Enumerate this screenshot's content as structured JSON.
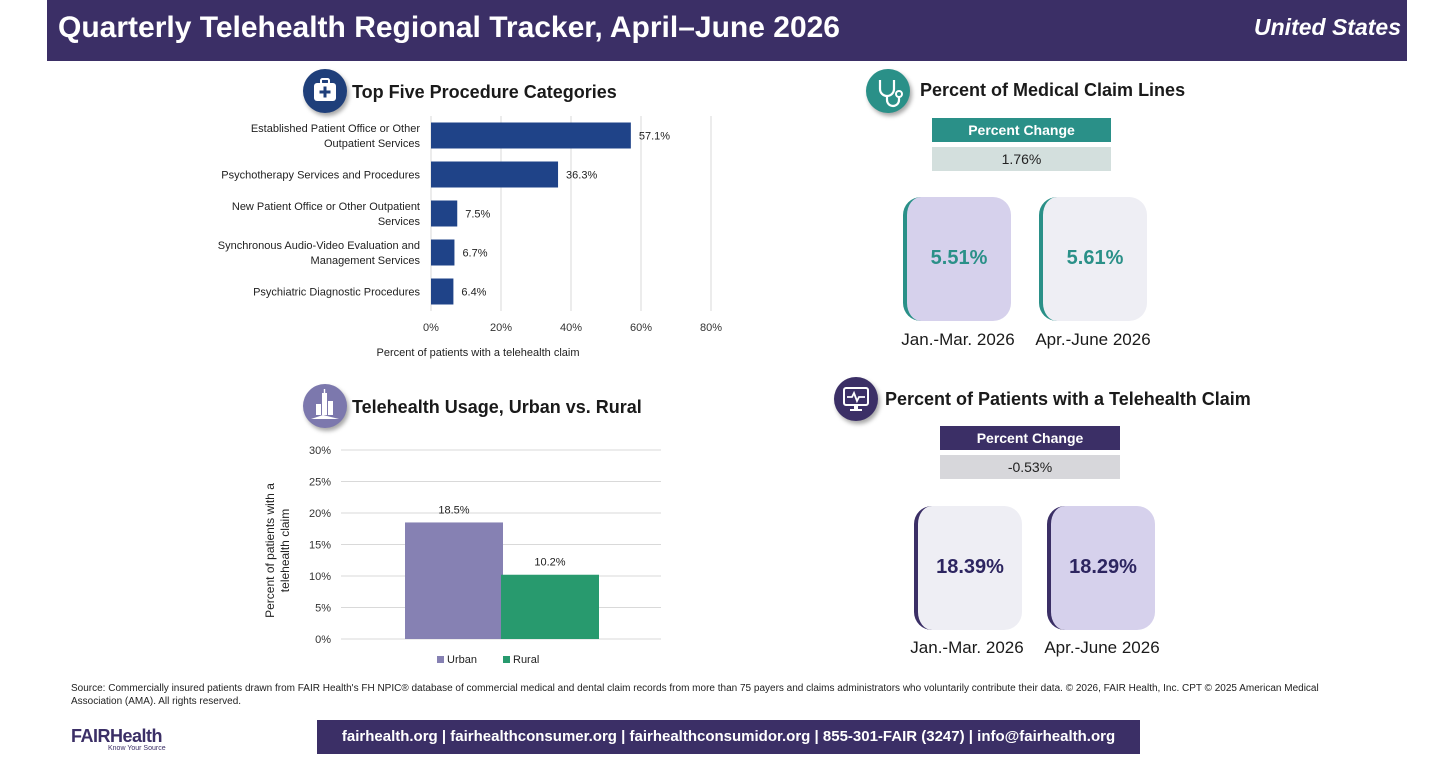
{
  "header": {
    "title": "Quarterly Telehealth Regional Tracker, April–June 2026",
    "region": "United States"
  },
  "procedures": {
    "title": "Top Five Procedure Categories"
  },
  "claim_lines": {
    "title": "Percent of Medical Claim Lines",
    "change_label": "Percent Change",
    "change_value": "1.76%",
    "q1_value": "5.51%",
    "q2_value": "5.61%",
    "q1_label": "Jan.-Mar. 2026",
    "q2_label": "Apr.-June 2026"
  },
  "urban_rural": {
    "title": "Telehealth Usage, Urban vs. Rural"
  },
  "patients": {
    "title": "Percent of Patients with a Telehealth Claim",
    "change_label": "Percent Change",
    "change_value": "-0.53%",
    "q1_value": "18.39%",
    "q2_value": "18.29%",
    "q1_label": "Jan.-Mar. 2026",
    "q2_label": "Apr.-June 2026"
  },
  "source": "Source: Commercially insured patients drawn from FAIR Health's FH NPIC® database of commercial medical and dental claim records from more than 75 payers and claims administrators who voluntarily contribute their data. © 2026, FAIR Health, Inc. CPT © 2025 American Medical Association (AMA). All rights reserved.",
  "footer": {
    "contacts": "fairhealth.org  |  fairhealthconsumer.org  |  fairhealthconsumidor.org  |  855-301-FAIR (3247)  |  info@fairhealth.org"
  },
  "logo": {
    "brand": "FAIRHealth",
    "tagline": "Know Your Source"
  },
  "colors": {
    "navy": "#3b2f66",
    "bar_blue": "#1f4388",
    "teal": "#2a9088",
    "urban": "#8681b3",
    "rural": "#289a6e",
    "lavender": "#d6d1ec",
    "light_gray": "#eeeef4"
  },
  "chart_data": [
    {
      "type": "bar",
      "orientation": "horizontal",
      "categories": [
        "Established Patient Office or Other Outpatient Services",
        "Psychotherapy Services and Procedures",
        "New Patient Office or Other Outpatient Services",
        "Synchronous Audio-Video Evaluation and Management Services",
        "Psychiatric Diagnostic Procedures"
      ],
      "values": [
        57.1,
        36.3,
        7.5,
        6.7,
        6.4
      ],
      "value_labels": [
        "57.1%",
        "36.3%",
        "7.5%",
        "6.7%",
        "6.4%"
      ],
      "xlabel": "Percent of patients with a telehealth claim",
      "xlim": [
        0,
        80
      ],
      "xticks": [
        "0%",
        "20%",
        "40%",
        "60%",
        "80%"
      ],
      "grid": "vertical"
    },
    {
      "type": "bar",
      "series": [
        {
          "name": "Urban",
          "values": [
            18.5
          ],
          "value_label": "18.5%"
        },
        {
          "name": "Rural",
          "values": [
            10.2
          ],
          "value_label": "10.2%"
        }
      ],
      "ylabel": "Percent of patients with a telehealth claim",
      "ylim": [
        0,
        30
      ],
      "yticks": [
        "0%",
        "5%",
        "10%",
        "15%",
        "20%",
        "25%",
        "30%"
      ],
      "grid": "horizontal",
      "legend": "bottom"
    }
  ]
}
